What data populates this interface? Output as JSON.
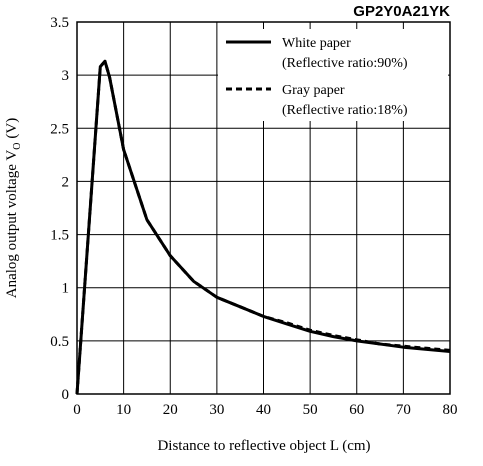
{
  "chart_data": {
    "type": "line",
    "title": "GP2Y0A21YK",
    "xlabel": "Distance to reflective object L (cm)",
    "ylabel": "Analog output voltage V",
    "ylabel_subscript": "O",
    "ylabel_unit": "(V)",
    "xlim": [
      0,
      80
    ],
    "ylim": [
      0,
      3.5
    ],
    "xticks": [
      0,
      10,
      20,
      30,
      40,
      50,
      60,
      70,
      80
    ],
    "yticks": [
      0,
      0.5,
      1,
      1.5,
      2,
      2.5,
      3,
      3.5
    ],
    "xtick_labels": [
      "0",
      "10",
      "20",
      "30",
      "40",
      "50",
      "60",
      "70",
      "80"
    ],
    "ytick_labels": [
      "0",
      "0.5",
      "1",
      "1.5",
      "2",
      "2.5",
      "3",
      "3.5"
    ],
    "grid": true,
    "legend_position": "top-right",
    "series": [
      {
        "name": "White paper",
        "name_line2": "(Reflective ratio:90%)",
        "style": "solid",
        "x": [
          0,
          5,
          6,
          7,
          10,
          15,
          20,
          25,
          30,
          35,
          40,
          45,
          50,
          55,
          60,
          65,
          70,
          75,
          80
        ],
        "y": [
          0,
          3.08,
          3.13,
          2.98,
          2.3,
          1.64,
          1.3,
          1.06,
          0.91,
          0.82,
          0.73,
          0.66,
          0.59,
          0.54,
          0.5,
          0.47,
          0.44,
          0.42,
          0.4
        ]
      },
      {
        "name": "Gray paper",
        "name_line2": "(Reflective ratio:18%)",
        "style": "dashed",
        "x": [
          0,
          5,
          6,
          7,
          10,
          15,
          20,
          25,
          30,
          35,
          40,
          45,
          50,
          55,
          60,
          65,
          70,
          75,
          80
        ],
        "y": [
          0,
          3.08,
          3.13,
          2.98,
          2.3,
          1.64,
          1.3,
          1.06,
          0.91,
          0.82,
          0.73,
          0.67,
          0.6,
          0.55,
          0.51,
          0.47,
          0.45,
          0.43,
          0.41
        ]
      }
    ]
  }
}
